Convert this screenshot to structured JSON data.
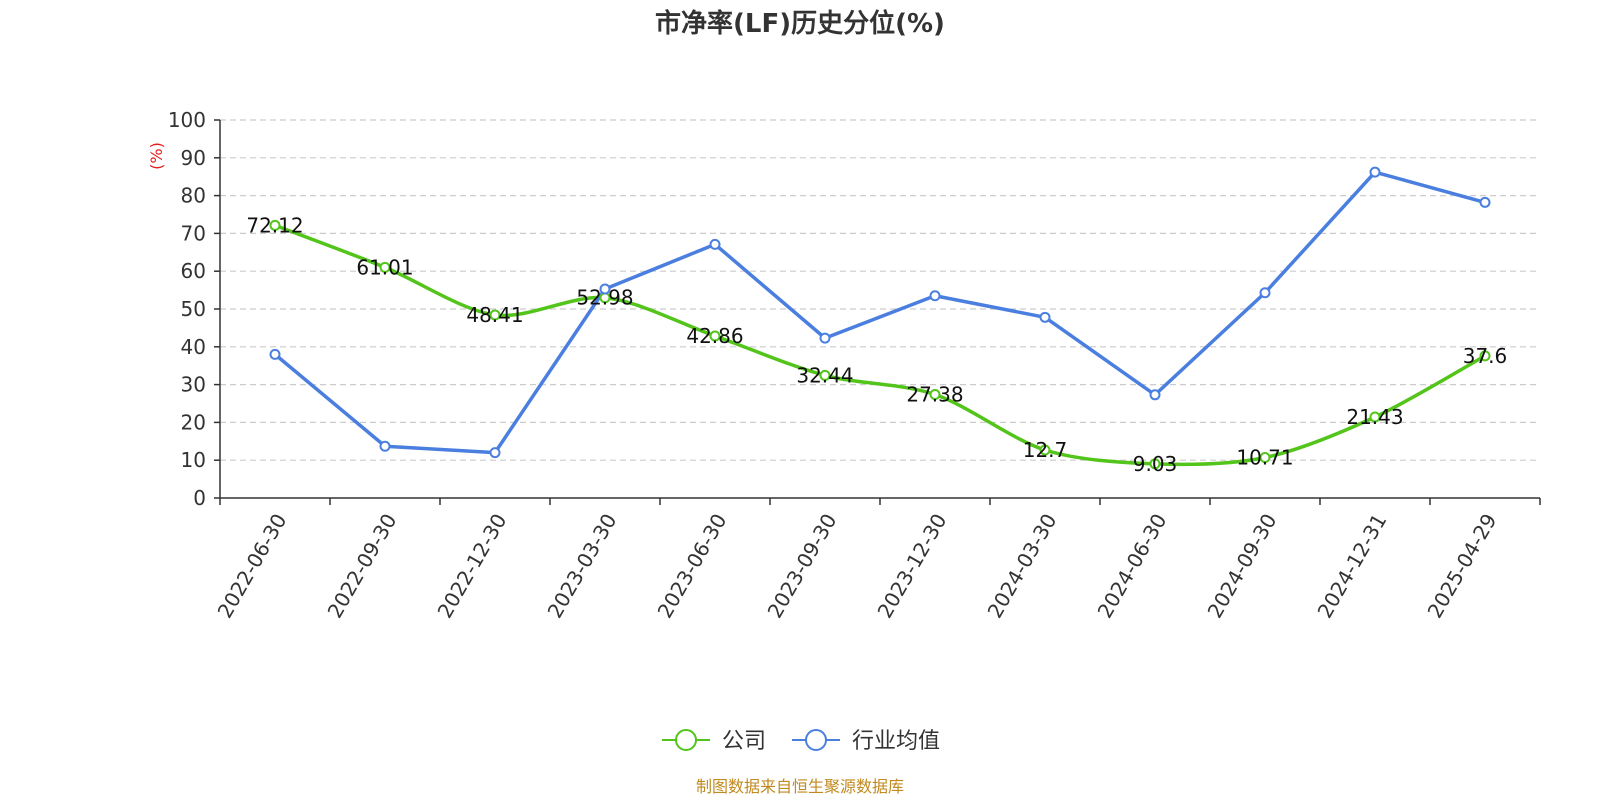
{
  "chart_data": {
    "type": "line",
    "title": "市净率(LF)历史分位(%)",
    "ylabel": "(%)",
    "xlabel": "",
    "ylim": [
      0,
      100
    ],
    "yticks": [
      0,
      10,
      20,
      30,
      40,
      50,
      60,
      70,
      80,
      90,
      100
    ],
    "categories": [
      "2022-06-30",
      "2022-09-30",
      "2022-12-30",
      "2023-03-30",
      "2023-06-30",
      "2023-09-30",
      "2023-12-30",
      "2024-03-30",
      "2024-06-30",
      "2024-09-30",
      "2024-12-31",
      "2025-04-29"
    ],
    "series": [
      {
        "name": "公司",
        "color": "#52c41a",
        "values": [
          72.12,
          61.01,
          48.41,
          52.98,
          42.86,
          32.44,
          27.38,
          12.7,
          9.03,
          10.71,
          21.43,
          37.6
        ],
        "value_labels": [
          "72.12",
          "61.01",
          "48.41",
          "52.98",
          "42.86",
          "32.44",
          "27.38",
          "12.7",
          "9.03",
          "10.71",
          "21.43",
          "37.6"
        ]
      },
      {
        "name": "行业均值",
        "color": "#4a7fe0",
        "values": [
          38.0,
          13.7,
          12.0,
          55.3,
          67.1,
          42.3,
          53.5,
          47.8,
          27.3,
          54.3,
          86.2,
          78.2
        ]
      }
    ],
    "grid": true,
    "grid_style": "dashed",
    "legend_position": "bottom-center",
    "ylabel_color": "#e02020"
  },
  "footer": {
    "source_text": "制图数据来自恒生聚源数据库",
    "color": "#c08a20"
  }
}
